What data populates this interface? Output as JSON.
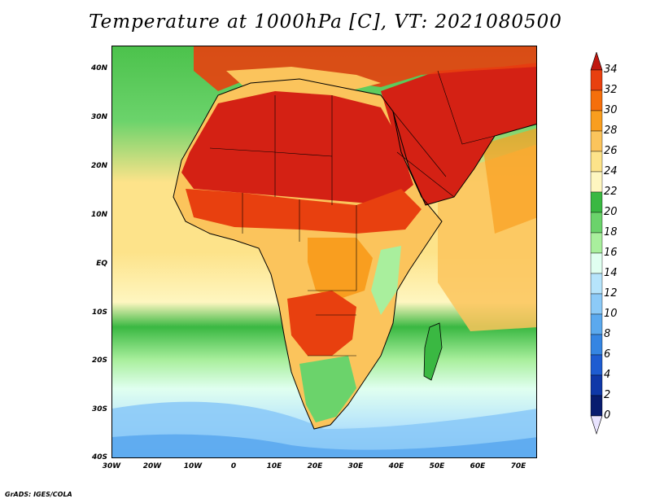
{
  "title": "Temperature at 1000hPa [C], VT: 2021080500",
  "units": "C",
  "valid_time": "2021080500",
  "credit": "GrADS: IGES/COLA",
  "map": {
    "lat_labels": [
      "40N",
      "30N",
      "20N",
      "10N",
      "EQ",
      "10S",
      "20S",
      "30S",
      "40S"
    ],
    "lon_labels": [
      "30W",
      "20W",
      "10W",
      "0",
      "10E",
      "20E",
      "30E",
      "40E",
      "50E",
      "60E",
      "70E"
    ],
    "lat_range": [
      -40,
      44
    ],
    "lon_range": [
      -30,
      74
    ]
  },
  "colorbar": {
    "labels": [
      "34",
      "32",
      "30",
      "28",
      "26",
      "24",
      "22",
      "20",
      "18",
      "16",
      "14",
      "12",
      "10",
      "8",
      "6",
      "4",
      "2",
      "0"
    ],
    "colors": [
      "#d42114",
      "#e8400f",
      "#f56f0c",
      "#f99e1f",
      "#fbc45c",
      "#fde38a",
      "#fef6c0",
      "#3ab842",
      "#6bd36b",
      "#a9ef9d",
      "#e0fff0",
      "#b6e4fb",
      "#8ccaf7",
      "#5ba9ee",
      "#3585e2",
      "#1e5cd1",
      "#0f38a8",
      "#081c6f"
    ],
    "top_triangle_color": "#c01810",
    "bottom_triangle_color": "#e9e4ff"
  }
}
